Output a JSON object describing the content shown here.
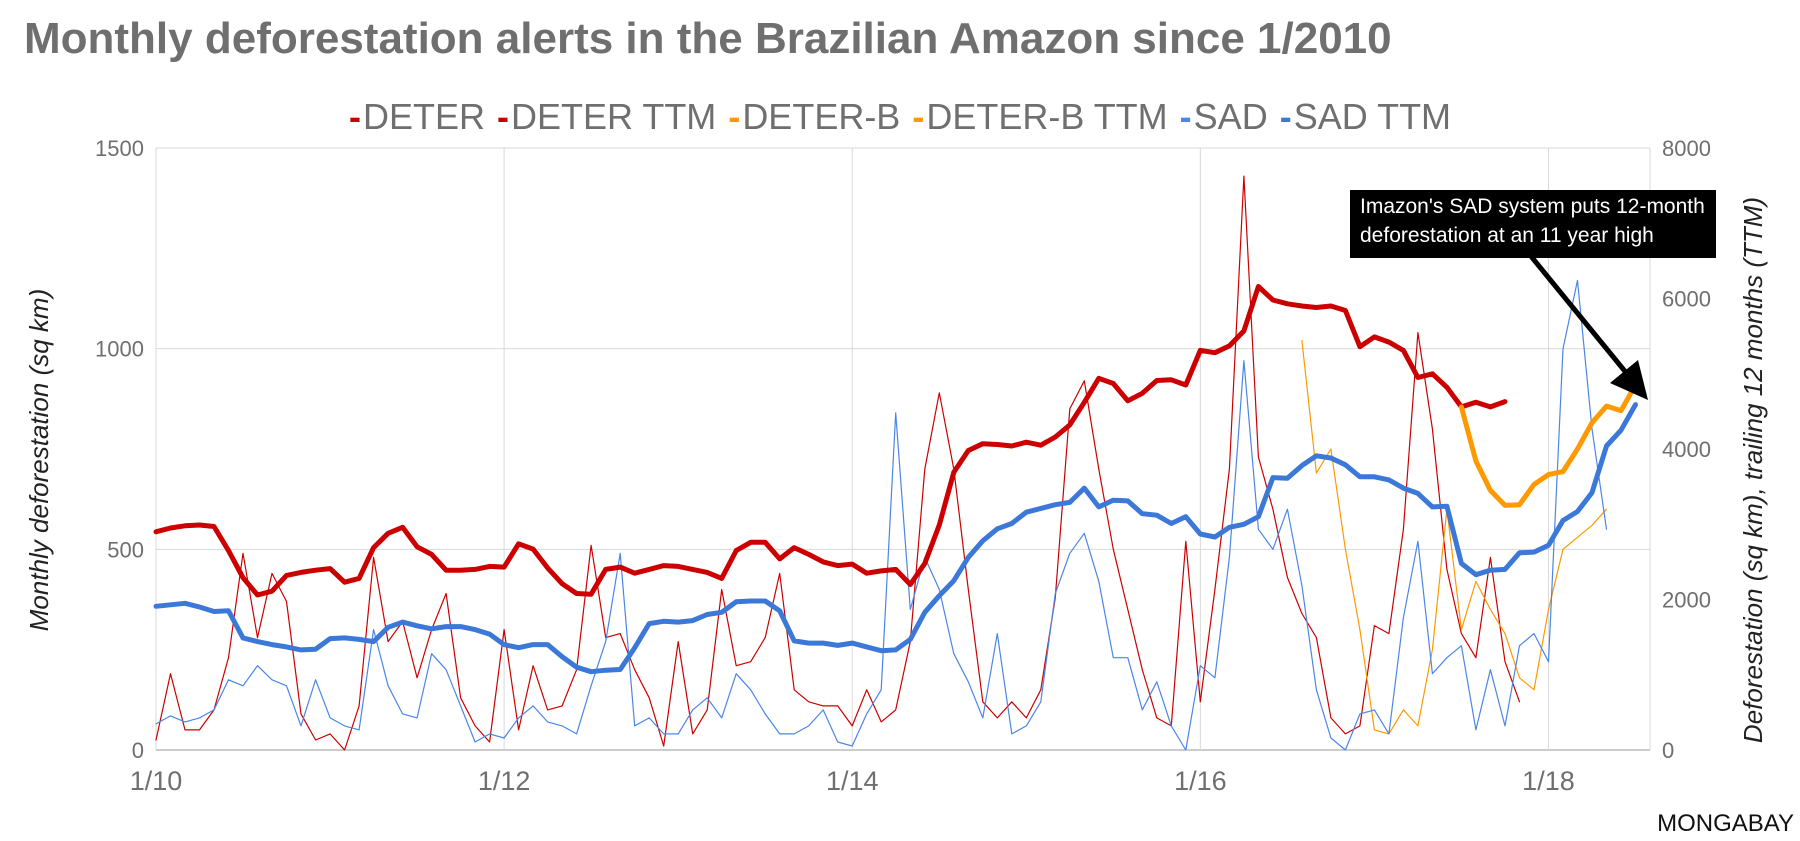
{
  "chart_data": {
    "type": "line",
    "title": "Monthly deforestation alerts in the Brazilian Amazon since 1/2010",
    "ylabel_left": "Monthly deforestation (sq km)",
    "ylabel_right": "Deforestation (sq km), trailing 12 months (TTM)",
    "ylim_left": [
      0,
      1500
    ],
    "ylim_right": [
      0,
      8000
    ],
    "yticks_left": [
      "0",
      "500",
      "1000",
      "1500"
    ],
    "yticks_right": [
      "0",
      "2000",
      "4000",
      "6000",
      "8000"
    ],
    "xticks": [
      "1/10",
      "1/12",
      "1/14",
      "1/16",
      "1/18"
    ],
    "grid": true,
    "legend_position": "top",
    "annotation": "Imazon's SAD system puts 12-month deforestation at an 11 year high",
    "source": "MONGABAY",
    "series": [
      {
        "name": "DETER",
        "axis": "left",
        "color": "#cc0000",
        "width": 1.2,
        "start": "2010-01",
        "values": [
          25,
          190,
          50,
          50,
          100,
          230,
          490,
          280,
          440,
          370,
          90,
          25,
          40,
          0,
          110,
          480,
          270,
          320,
          180,
          300,
          390,
          130,
          60,
          20,
          300,
          50,
          210,
          100,
          110,
          200,
          510,
          280,
          290,
          200,
          130,
          10,
          270,
          40,
          100,
          400,
          210,
          220,
          280,
          440,
          150,
          120,
          110,
          110,
          60,
          150,
          70,
          100,
          270,
          700,
          890,
          700,
          400,
          120,
          80,
          120,
          80,
          150,
          380,
          850,
          920,
          700,
          500,
          350,
          200,
          80,
          60,
          520,
          120,
          400,
          700,
          1430,
          730,
          600,
          430,
          340,
          280,
          80,
          40,
          60,
          310,
          290,
          550,
          1040,
          800,
          450,
          290,
          230,
          480,
          220,
          120
        ]
      },
      {
        "name": "DETER TTM",
        "axis": "right",
        "color": "#cc0000",
        "width": 5,
        "start": "2010-01",
        "values": [
          2900,
          2950,
          2980,
          2990,
          2970,
          2650,
          2290,
          2060,
          2110,
          2320,
          2360,
          2390,
          2410,
          2230,
          2280,
          2690,
          2880,
          2960,
          2700,
          2600,
          2390,
          2390,
          2400,
          2440,
          2430,
          2740,
          2670,
          2420,
          2210,
          2080,
          2070,
          2400,
          2430,
          2350,
          2400,
          2450,
          2440,
          2400,
          2360,
          2280,
          2650,
          2760,
          2760,
          2540,
          2690,
          2600,
          2500,
          2450,
          2470,
          2350,
          2380,
          2400,
          2200,
          2480,
          2990,
          3690,
          3980,
          4070,
          4060,
          4040,
          4090,
          4050,
          4160,
          4320,
          4620,
          4940,
          4870,
          4640,
          4740,
          4910,
          4920,
          4850,
          5310,
          5280,
          5370,
          5570,
          6160,
          5980,
          5930,
          5900,
          5880,
          5900,
          5840,
          5360,
          5490,
          5420,
          5310,
          4950,
          5000,
          4820,
          4560,
          4620,
          4560,
          4630
        ]
      },
      {
        "name": "DETER-B",
        "axis": "left",
        "color": "#ff9900",
        "width": 1.2,
        "start": "2016-08",
        "values": [
          1020,
          690,
          750,
          500,
          300,
          50,
          40,
          100,
          60,
          250,
          600,
          300,
          420,
          350,
          290,
          180,
          150,
          350,
          500,
          530,
          560,
          600
        ]
      },
      {
        "name": "DETER-B TTM",
        "axis": "right",
        "color": "#ff9900",
        "width": 5,
        "start": "2017-07",
        "values": [
          4560,
          3840,
          3450,
          3250,
          3260,
          3530,
          3660,
          3700,
          4000,
          4350,
          4570,
          4510,
          4850
        ]
      },
      {
        "name": "SAD",
        "axis": "left",
        "color": "#4a86e8",
        "width": 1.2,
        "start": "2010-01",
        "values": [
          65,
          85,
          70,
          80,
          100,
          175,
          160,
          210,
          175,
          160,
          60,
          175,
          80,
          60,
          50,
          300,
          160,
          90,
          80,
          240,
          200,
          110,
          20,
          40,
          30,
          80,
          110,
          70,
          60,
          40,
          160,
          270,
          490,
          60,
          80,
          40,
          40,
          100,
          130,
          80,
          190,
          150,
          90,
          40,
          40,
          60,
          100,
          20,
          10,
          90,
          150,
          840,
          350,
          480,
          400,
          240,
          170,
          80,
          290,
          40,
          60,
          120,
          390,
          490,
          540,
          420,
          230,
          230,
          100,
          170,
          60,
          0,
          210,
          180,
          480,
          970,
          550,
          500,
          600,
          410,
          150,
          30,
          0,
          90,
          100,
          40,
          330,
          520,
          190,
          230,
          260,
          50,
          200,
          60,
          260,
          290,
          220,
          1000,
          1170,
          800,
          550
        ]
      },
      {
        "name": "SAD TTM",
        "axis": "right",
        "color": "#3c78d8",
        "width": 5,
        "start": "2010-01",
        "values": [
          1910,
          1930,
          1950,
          1900,
          1840,
          1850,
          1490,
          1440,
          1400,
          1370,
          1330,
          1340,
          1480,
          1490,
          1470,
          1440,
          1630,
          1700,
          1650,
          1610,
          1640,
          1640,
          1600,
          1540,
          1400,
          1360,
          1400,
          1400,
          1240,
          1100,
          1040,
          1060,
          1070,
          1360,
          1680,
          1710,
          1700,
          1720,
          1800,
          1830,
          1970,
          1980,
          1980,
          1850,
          1450,
          1420,
          1420,
          1390,
          1420,
          1370,
          1320,
          1330,
          1470,
          1830,
          2050,
          2250,
          2560,
          2780,
          2940,
          3010,
          3160,
          3210,
          3260,
          3290,
          3480,
          3230,
          3320,
          3310,
          3140,
          3120,
          3010,
          3100,
          2870,
          2830,
          2960,
          3000,
          3100,
          3620,
          3610,
          3780,
          3910,
          3880,
          3790,
          3630,
          3630,
          3590,
          3480,
          3410,
          3230,
          3240,
          2480,
          2330,
          2390,
          2400,
          2620,
          2630,
          2720,
          3050,
          3170,
          3420,
          4040,
          4250,
          4590
        ]
      }
    ]
  }
}
